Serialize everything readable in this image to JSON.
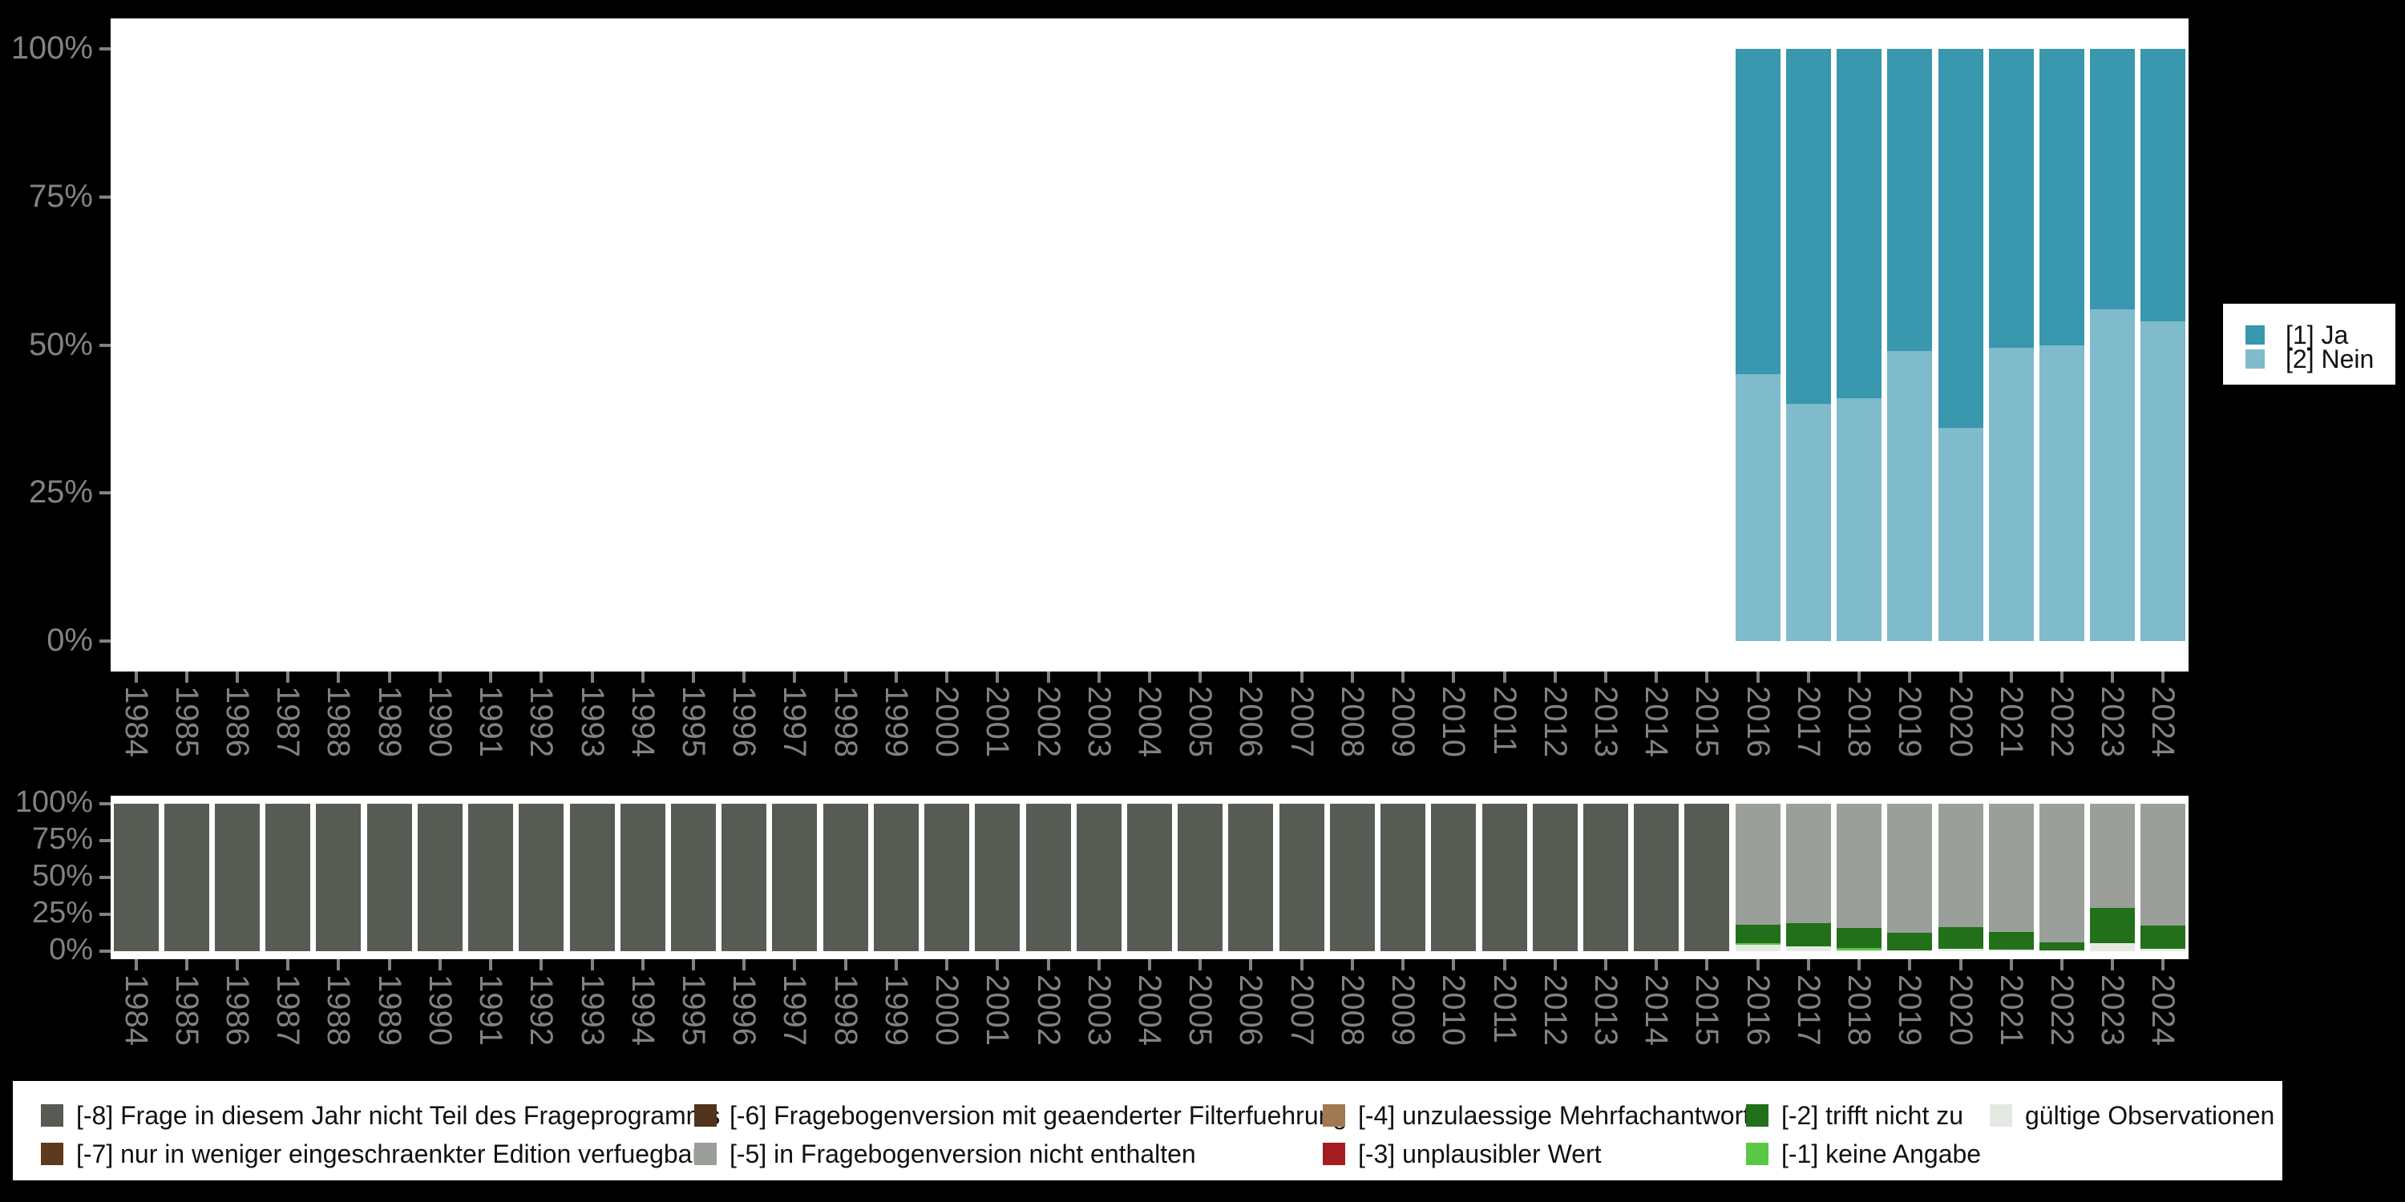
{
  "figure": {
    "background": "#000000",
    "panel_background": "#ffffff"
  },
  "colors": {
    "ja": "#3997ae",
    "nein": "#7fbbca",
    "m8": "#565c54",
    "m7": "#5d3a1d",
    "m6": "#50331a",
    "m5": "#9aa099",
    "m4": "#a17951",
    "m3": "#a31d1e",
    "m2": "#22701a",
    "m1": "#5ac746",
    "valid": "#e4eae2",
    "axis_text": "#828282",
    "legend_text": "#111111"
  },
  "axes": {
    "y_tick_labels": [
      "0%",
      "25%",
      "50%",
      "75%",
      "100%"
    ],
    "years": [
      1984,
      1985,
      1986,
      1987,
      1988,
      1989,
      1990,
      1991,
      1992,
      1993,
      1994,
      1995,
      1996,
      1997,
      1998,
      1999,
      2000,
      2001,
      2002,
      2003,
      2004,
      2005,
      2006,
      2007,
      2008,
      2009,
      2010,
      2011,
      2012,
      2013,
      2014,
      2015,
      2016,
      2017,
      2018,
      2019,
      2020,
      2021,
      2022,
      2023,
      2024
    ]
  },
  "right_legend": {
    "items": [
      {
        "key": "ja",
        "label": "[1] Ja"
      },
      {
        "key": "nein",
        "label": "[2] Nein"
      }
    ]
  },
  "bottom_legend": {
    "items": [
      {
        "key": "m8",
        "label": "[-8] Frage in diesem Jahr nicht Teil des Frageprogramms"
      },
      {
        "key": "m7",
        "label": "[-7] nur in weniger eingeschraenkter Edition verfuegbar"
      },
      {
        "key": "m6",
        "label": "[-6] Fragebogenversion mit geaenderter Filterfuehrung"
      },
      {
        "key": "m5",
        "label": "[-5] in Fragebogenversion nicht enthalten"
      },
      {
        "key": "m4",
        "label": "[-4] unzulaessige Mehrfachantwort"
      },
      {
        "key": "m3",
        "label": "[-3] unplausibler Wert"
      },
      {
        "key": "m2",
        "label": "[-2] trifft nicht zu"
      },
      {
        "key": "m1",
        "label": "[-1] keine Angabe"
      },
      {
        "key": "valid",
        "label": "gültige Observationen"
      }
    ]
  },
  "chart_data": [
    {
      "type": "bar",
      "stacking": "percent",
      "title": "",
      "xlabel": "",
      "ylabel": "",
      "ylim": [
        0,
        100
      ],
      "grid": false,
      "legend_position": "right",
      "categories": [
        1984,
        1985,
        1986,
        1987,
        1988,
        1989,
        1990,
        1991,
        1992,
        1993,
        1994,
        1995,
        1996,
        1997,
        1998,
        1999,
        2000,
        2001,
        2002,
        2003,
        2004,
        2005,
        2006,
        2007,
        2008,
        2009,
        2010,
        2011,
        2012,
        2013,
        2014,
        2015,
        2016,
        2017,
        2018,
        2019,
        2020,
        2021,
        2022,
        2023,
        2024
      ],
      "series": [
        {
          "name": "[1] Ja",
          "key": "ja",
          "values": [
            null,
            null,
            null,
            null,
            null,
            null,
            null,
            null,
            null,
            null,
            null,
            null,
            null,
            null,
            null,
            null,
            null,
            null,
            null,
            null,
            null,
            null,
            null,
            null,
            null,
            null,
            null,
            null,
            null,
            null,
            null,
            null,
            55,
            60,
            59,
            51,
            64,
            50.5,
            50,
            44,
            46
          ]
        },
        {
          "name": "[2] Nein",
          "key": "nein",
          "values": [
            null,
            null,
            null,
            null,
            null,
            null,
            null,
            null,
            null,
            null,
            null,
            null,
            null,
            null,
            null,
            null,
            null,
            null,
            null,
            null,
            null,
            null,
            null,
            null,
            null,
            null,
            null,
            null,
            null,
            null,
            null,
            null,
            45,
            40,
            41,
            49,
            36,
            49.5,
            50,
            56,
            54
          ]
        }
      ]
    },
    {
      "type": "bar",
      "stacking": "percent",
      "title": "",
      "xlabel": "",
      "ylabel": "",
      "ylim": [
        0,
        100
      ],
      "grid": false,
      "legend_position": "bottom",
      "categories": [
        1984,
        1985,
        1986,
        1987,
        1988,
        1989,
        1990,
        1991,
        1992,
        1993,
        1994,
        1995,
        1996,
        1997,
        1998,
        1999,
        2000,
        2001,
        2002,
        2003,
        2004,
        2005,
        2006,
        2007,
        2008,
        2009,
        2010,
        2011,
        2012,
        2013,
        2014,
        2015,
        2016,
        2017,
        2018,
        2019,
        2020,
        2021,
        2022,
        2023,
        2024
      ],
      "series": [
        {
          "name": "[-8] Frage in diesem Jahr nicht Teil des Frageprogramms",
          "key": "m8",
          "values": [
            100,
            100,
            100,
            100,
            100,
            100,
            100,
            100,
            100,
            100,
            100,
            100,
            100,
            100,
            100,
            100,
            100,
            100,
            100,
            100,
            100,
            100,
            100,
            100,
            100,
            100,
            100,
            100,
            100,
            100,
            100,
            100,
            0,
            0,
            0,
            0,
            0,
            0,
            0,
            0,
            0
          ]
        },
        {
          "name": "[-5] in Fragebogenversion nicht enthalten",
          "key": "m5",
          "values": [
            0,
            0,
            0,
            0,
            0,
            0,
            0,
            0,
            0,
            0,
            0,
            0,
            0,
            0,
            0,
            0,
            0,
            0,
            0,
            0,
            0,
            0,
            0,
            0,
            0,
            0,
            0,
            0,
            0,
            0,
            0,
            0,
            82,
            81,
            84,
            87.5,
            83.5,
            87,
            94,
            70.5,
            82.5
          ]
        },
        {
          "name": "[-2] trifft nicht zu",
          "key": "m2",
          "values": [
            0,
            0,
            0,
            0,
            0,
            0,
            0,
            0,
            0,
            0,
            0,
            0,
            0,
            0,
            0,
            0,
            0,
            0,
            0,
            0,
            0,
            0,
            0,
            0,
            0,
            0,
            0,
            0,
            0,
            0,
            0,
            0,
            12.5,
            15.5,
            14,
            12,
            15,
            12,
            5.5,
            24,
            16
          ]
        },
        {
          "name": "[-1] keine Angabe",
          "key": "m1",
          "values": [
            0,
            0,
            0,
            0,
            0,
            0,
            0,
            0,
            0,
            0,
            0,
            0,
            0,
            0,
            0,
            0,
            0,
            0,
            0,
            0,
            0,
            0,
            0,
            0,
            0,
            0,
            0,
            0,
            0,
            0,
            0,
            0,
            1,
            0,
            1.3,
            0,
            0,
            0,
            0,
            0,
            0
          ]
        },
        {
          "name": "gültige Observationen",
          "key": "valid",
          "values": [
            0,
            0,
            0,
            0,
            0,
            0,
            0,
            0,
            0,
            0,
            0,
            0,
            0,
            0,
            0,
            0,
            0,
            0,
            0,
            0,
            0,
            0,
            0,
            0,
            0,
            0,
            0,
            0,
            0,
            0,
            0,
            0,
            4.5,
            3.5,
            0.7,
            0.5,
            1.5,
            1,
            0.5,
            5.5,
            1.5
          ]
        }
      ]
    }
  ]
}
